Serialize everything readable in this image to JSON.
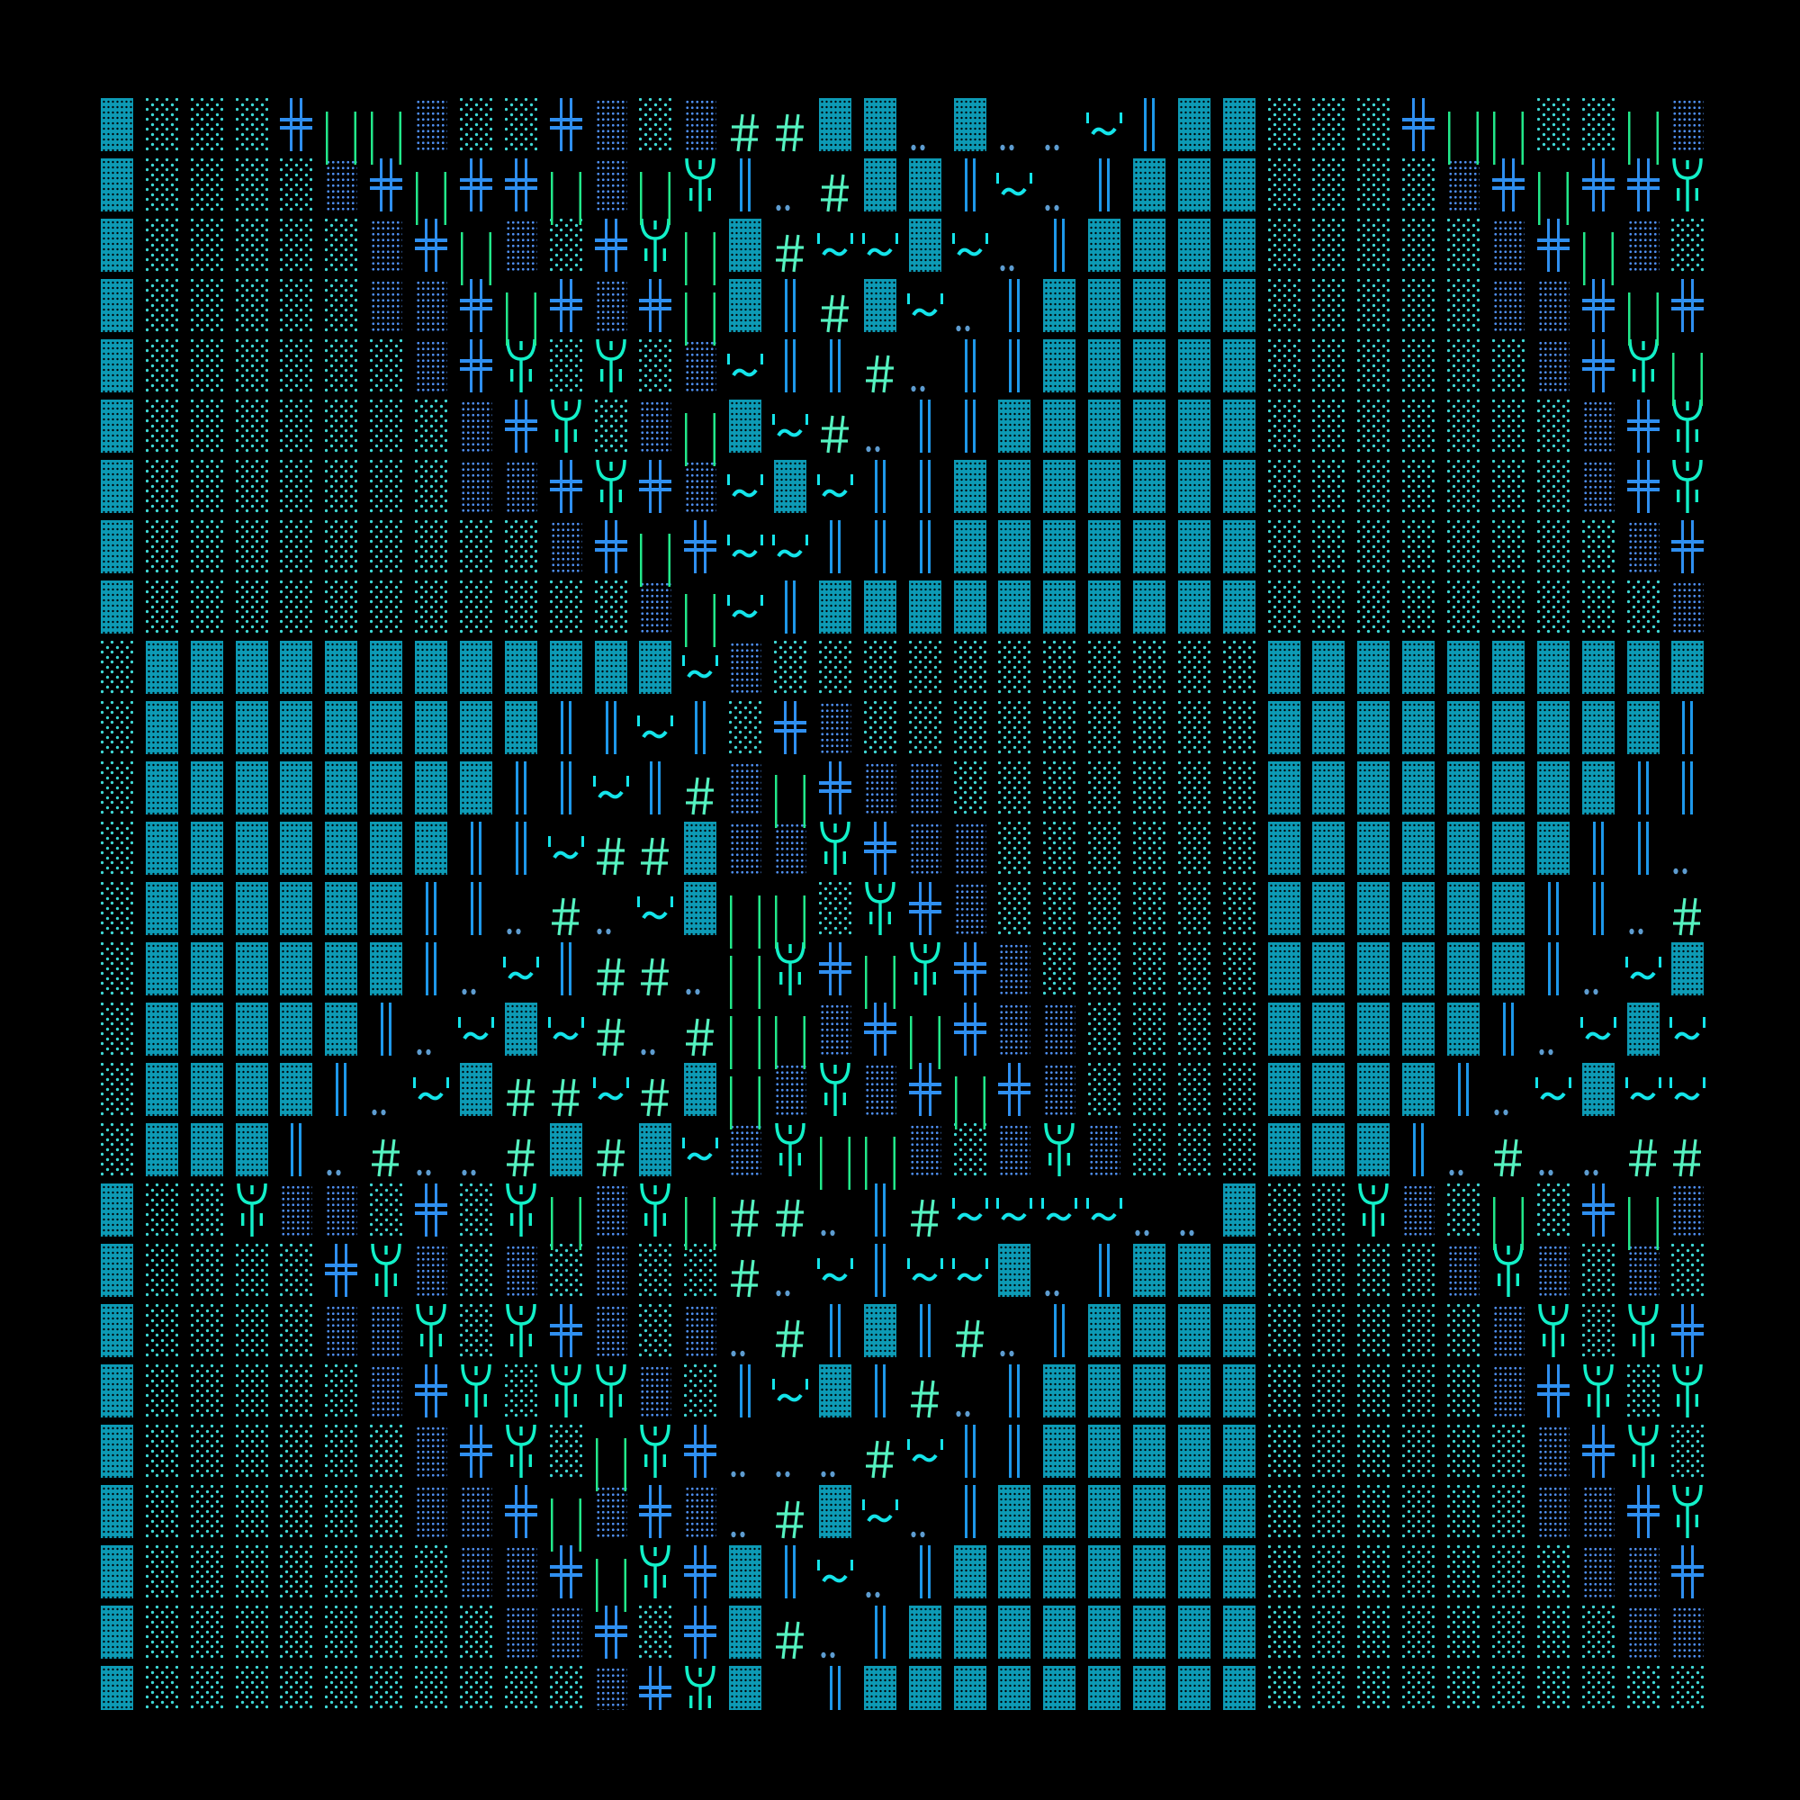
{
  "palette": {
    "background": "#000000",
    "block": "#0d9ab5",
    "light_shade": "#3fd8d6",
    "medium_shade": "#4e8ef0",
    "double_cross": "#2f8ff0",
    "double_bar": "#1e98ea",
    "green_bars": "#22e88a",
    "psi": "#12f0c8",
    "hash": "#55f2c0",
    "dots": "#5d9cd0",
    "tilde": "#14e4ea"
  },
  "glyph_names": {
    "█": "block",
    "░": "light-shade",
    "▒": "medium-shade",
    "╬": "double-cross",
    "|": "green-bars",
    "Ψ": "psi",
    "║": "double-bar",
    "#": "hash",
    "‥": "two-dots",
    "~": "tilde-quote",
    " ": "blank"
  },
  "grid": {
    "rows": [
      "█░░░╬||▒░░╬▒░▒##██‥█‥‥~║██░░░╬||░░|▒",
      "█░░░░▒╬|╬╬|▒|Ψ║‥#██║~‥║███░░░░▒╬|╬╬Ψ",
      "█░░░░░▒╬|▒░╬Ψ|█#~~█~‥║████░░░░░▒╬|▒░",
      "█░░░░░▒▒╬|╬▒╬|█║#█~‥║█████░░░░░▒▒╬|╬",
      "█░░░░░░▒╬Ψ░Ψ░▒~║║#‥║║█████░░░░░░▒╬Ψ|",
      "█░░░░░░░▒╬Ψ░▒|█~#‥║║██████░░░░░░░▒╬Ψ",
      "█░░░░░░░▒▒╬Ψ╬▒~█~║║███████░░░░░░░▒╬Ψ",
      "█░░░░░░░░░▒╬|╬~~║║║███████░░░░░░░░▒╬",
      "█░░░░░░░░░░░▒|~║██████████░░░░░░░░░▒",
      "░████████████~▒░░░░░░░░░░░██████████",
      "░█████████║║~║░╬▒░░░░░░░░░█████████║",
      "░████████║║~║#▒|╬▒▒░░░░░░░████████║║",
      "░███████║║~##█▒▒Ψ╬▒▒░░░░░░███████║║‥",
      "░██████║║‥#‥~█||░Ψ╬▒░░░░░░██████║║‥#",
      "░██████║‥~║##‥|Ψ╬|Ψ╬▒░░░░░██████║‥~█",
      "░█████║‥~█~#‥#||▒╬|╬▒▒░░░░█████║‥~█~",
      "░████║‥~█##~#█|▒Ψ▒╬|╬▒░░░░████║‥~█~~",
      "░███║‥#‥‥#█#█~▒Ψ||▒░▒Ψ▒░░░███║‥#‥‥##",
      "█░░Ψ▒▒░╬░Ψ|▒Ψ|##‥║#~~~~‥‥█░░Ψ▒░|░╬|▒",
      "█░░░░╬Ψ▒░▒░▒░░#‥~║~~█‥║███░░░░▒Ψ▒░▒░",
      "█░░░░▒▒Ψ░Ψ╬▒░▒‥#║█║#‥║████░░░░░▒Ψ░Ψ╬",
      "█░░░░░▒╬Ψ░ΨΨ▒░║~█║#‥║█████░░░░░▒╬Ψ░Ψ",
      "█░░░░░░▒╬Ψ░|Ψ╬‥‥‥#~║║█████░░░░░░▒╬Ψ░",
      "█░░░░░░▒▒╬|▒╬▒‥#█~‥║██████░░░░░░▒▒╬Ψ",
      "█░░░░░░░▒▒╬|Ψ╬█║~‥║███████░░░░░░░▒▒╬",
      "█░░░░░░░░▒▒╬░╬█#‥║████████░░░░░░░░▒▒",
      "█░░░░░░░░░░▒╬Ψ█ ║█████████░░░░░░░░░░"
    ]
  }
}
